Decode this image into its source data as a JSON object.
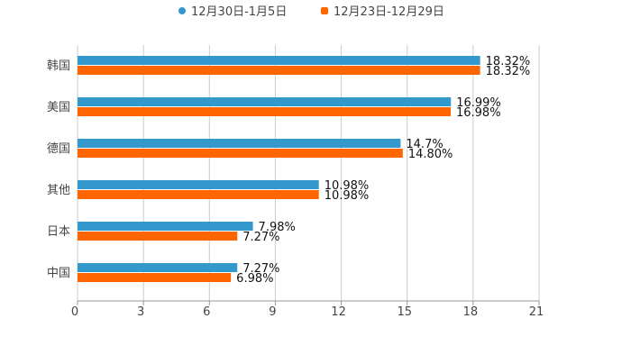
{
  "chart_data": {
    "type": "bar",
    "orientation": "horizontal",
    "title": "",
    "xlabel": "",
    "ylabel": "",
    "categories": [
      "韩国",
      "美国",
      "德国",
      "其他",
      "日本",
      "中国"
    ],
    "series": [
      {
        "name": "12月30日-1月5日",
        "color": "#3399cc",
        "values": [
          18.32,
          16.99,
          14.7,
          10.98,
          7.98,
          7.27
        ],
        "labels": [
          "18.32%",
          "16.99%",
          "14.7%",
          "10.98%",
          "7.98%",
          "7.27%"
        ]
      },
      {
        "name": "12月23日-12月29日",
        "color": "#ff6600",
        "values": [
          18.32,
          16.98,
          14.8,
          10.98,
          7.27,
          6.98
        ],
        "labels": [
          "18.32%",
          "16.98%",
          "14.80%",
          "10.98%",
          "7.27%",
          "6.98%"
        ]
      }
    ],
    "xlim": [
      0,
      21
    ],
    "xticks": [
      "0",
      "3",
      "6",
      "9",
      "12",
      "15",
      "18",
      "21"
    ],
    "grid": true,
    "legend_position": "top-center"
  }
}
